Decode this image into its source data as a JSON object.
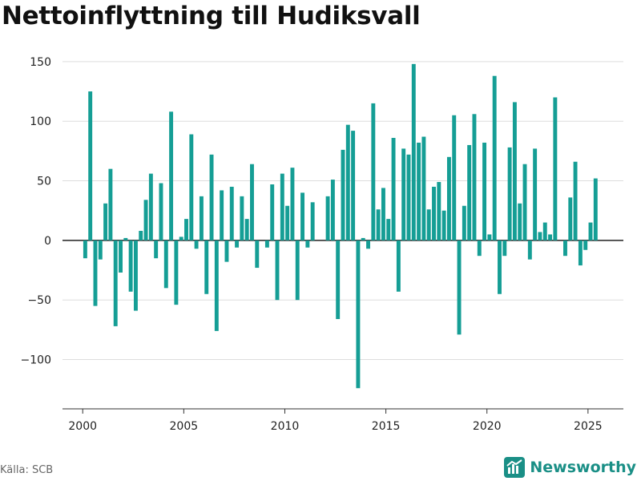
{
  "title": "Nettoinflyttning till Hudiksvall",
  "source": "Källa: SCB",
  "brand": "Newsworthy",
  "colors": {
    "bar": "#159e95",
    "grid": "#dddddd",
    "zero": "#222222",
    "brand": "#1a8f86"
  },
  "chart_data": {
    "type": "bar",
    "grid": true,
    "x_type": "time-quarterly",
    "xlim": [
      1999.0,
      2026.75
    ],
    "ylim": [
      -140,
      160
    ],
    "xticks": [
      2000,
      2005,
      2010,
      2015,
      2020,
      2025
    ],
    "yticks": [
      150,
      100,
      50,
      0,
      -50,
      -100
    ],
    "ytick_labels": [
      "150",
      "100",
      "50",
      "0",
      "−50",
      "−100"
    ],
    "start_year": 2000,
    "start_quarter": 1,
    "values": [
      -15,
      125,
      -55,
      -16,
      31,
      60,
      -72,
      -27,
      2,
      -43,
      -59,
      8,
      34,
      56,
      -15,
      48,
      -40,
      108,
      -54,
      3,
      18,
      89,
      -7,
      37,
      -45,
      72,
      -76,
      42,
      -18,
      45,
      -6,
      37,
      18,
      64,
      -23,
      0,
      -6,
      47,
      -50,
      56,
      29,
      61,
      -50,
      40,
      -6,
      32,
      0,
      0,
      37,
      51,
      -66,
      76,
      97,
      92,
      -124,
      2,
      -7,
      115,
      26,
      44,
      18,
      86,
      -43,
      77,
      72,
      148,
      82,
      87,
      26,
      45,
      49,
      25,
      70,
      105,
      -79,
      29,
      80,
      106,
      -13,
      82,
      5,
      138,
      -45,
      -13,
      78,
      116,
      31,
      64,
      -16,
      77,
      7,
      15,
      5,
      120,
      0,
      -13,
      36,
      66,
      -21,
      -8,
      15,
      52
    ]
  }
}
